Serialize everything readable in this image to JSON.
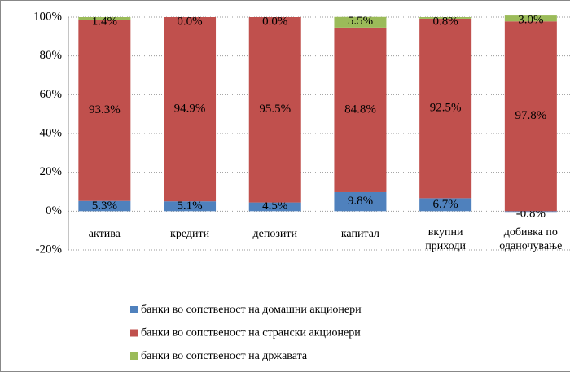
{
  "chart_data": {
    "type": "stacked_bar",
    "categories": [
      "актива",
      "кредити",
      "депозити",
      "капитал",
      "вкупни приходи",
      "добивка по оданочување"
    ],
    "series": [
      {
        "name": "банки во сопственост на домашни акционери",
        "color": "#4f81bd",
        "values": [
          5.3,
          5.1,
          4.5,
          9.8,
          6.7,
          -0.8
        ],
        "value_labels": [
          "5.3%",
          "5.1%",
          "4.5%",
          "9.8%",
          "6.7%",
          "-0.8%"
        ]
      },
      {
        "name": "банки во сопственост на странски акционери",
        "color": "#c0504d",
        "values": [
          93.3,
          94.9,
          95.5,
          84.8,
          92.5,
          97.8
        ],
        "value_labels": [
          "93.3%",
          "94.9%",
          "95.5%",
          "84.8%",
          "92.5%",
          "97.8%"
        ]
      },
      {
        "name": "банки во сопственост на државата",
        "color": "#9bbb59",
        "values": [
          1.4,
          0.0,
          0.0,
          5.5,
          0.8,
          3.0
        ],
        "value_labels": [
          "1.4%",
          "0.0%",
          "0.0%",
          "5.5%",
          "0.8%",
          "3.0%"
        ]
      }
    ],
    "ylim": [
      -20,
      100
    ],
    "yticks": [
      {
        "value": -20,
        "label": "-20%"
      },
      {
        "value": 0,
        "label": "0%"
      },
      {
        "value": 20,
        "label": "20%"
      },
      {
        "value": 40,
        "label": "40%"
      },
      {
        "value": 60,
        "label": "60%"
      },
      {
        "value": 80,
        "label": "80%"
      },
      {
        "value": 100,
        "label": "100%"
      }
    ],
    "grid": true,
    "legend": "bottom"
  }
}
